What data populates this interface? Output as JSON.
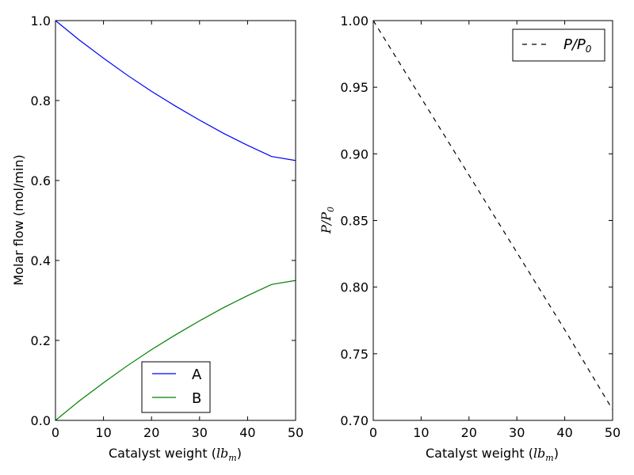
{
  "chart_data": [
    {
      "type": "line",
      "title": "",
      "xlabel": "Catalyst weight (",
      "xlabel_math": "lb",
      "xlabel_math_sub": "m",
      "xlabel_close": ")",
      "ylabel": "Molar flow (mol/min)",
      "xlim": [
        0,
        50
      ],
      "ylim": [
        0,
        1.0
      ],
      "xticks": [
        "0",
        "10",
        "20",
        "30",
        "40",
        "50"
      ],
      "yticks": [
        "0.0",
        "0.2",
        "0.4",
        "0.6",
        "0.8",
        "1.0"
      ],
      "grid": false,
      "legend_position": "lower-center",
      "x": [
        0,
        5,
        10,
        15,
        20,
        25,
        30,
        35,
        40,
        45,
        50
      ],
      "series": [
        {
          "name": "A",
          "color": "#0000ff",
          "linestyle": "solid",
          "values": [
            1.0,
            0.951,
            0.906,
            0.863,
            0.823,
            0.786,
            0.751,
            0.718,
            0.688,
            0.66,
            0.65
          ]
        },
        {
          "name": "B",
          "color": "#008000",
          "linestyle": "solid",
          "values": [
            0.0,
            0.049,
            0.094,
            0.137,
            0.177,
            0.214,
            0.249,
            0.282,
            0.312,
            0.34,
            0.35
          ]
        }
      ]
    },
    {
      "type": "line",
      "title": "",
      "xlabel": "Catalyst weight (",
      "xlabel_math": "lb",
      "xlabel_math_sub": "m",
      "xlabel_close": ")",
      "ylabel_math": "P/P",
      "ylabel_math_sub": "0",
      "xlim": [
        0,
        50
      ],
      "ylim": [
        0.7,
        1.0
      ],
      "xticks": [
        "0",
        "10",
        "20",
        "30",
        "40",
        "50"
      ],
      "yticks": [
        "0.70",
        "0.75",
        "0.80",
        "0.85",
        "0.90",
        "0.95",
        "1.00"
      ],
      "grid": false,
      "legend_position": "upper-right",
      "x": [
        0,
        10,
        20,
        30,
        40,
        50
      ],
      "series": [
        {
          "name": "P/P",
          "name_sub": "0",
          "color": "#000000",
          "linestyle": "dashed",
          "values": [
            1.0,
            0.942,
            0.884,
            0.826,
            0.768,
            0.708
          ]
        }
      ]
    }
  ]
}
